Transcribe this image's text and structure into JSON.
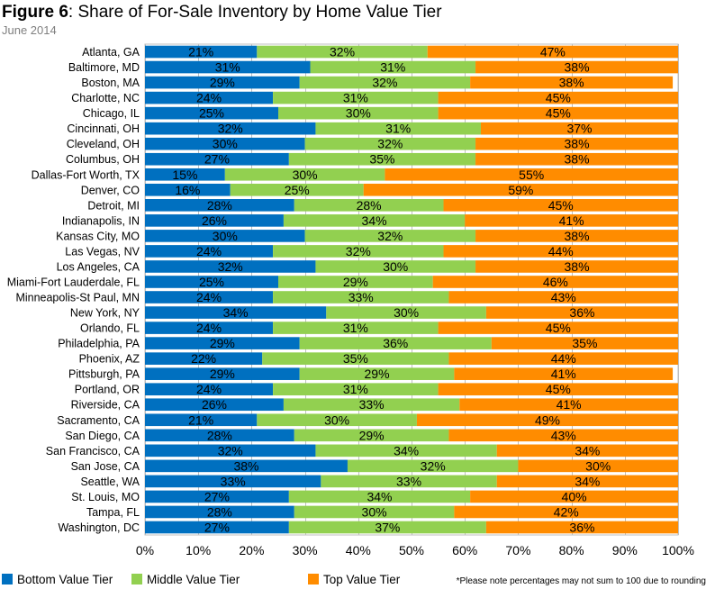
{
  "title": {
    "prefix": "Figure 6",
    "text": ": Share of For-Sale Inventory by Home Value Tier",
    "subtitle": "June 2014"
  },
  "note": "*Please note percentages may not sum to 100 due to rounding",
  "colors": {
    "bottom": "#0070C0",
    "middle": "#92D050",
    "top": "#FF8C00"
  },
  "chart_data": {
    "type": "bar",
    "orientation": "horizontal",
    "stacked": "percent",
    "title": "Share of For-Sale Inventory by Home Value Tier",
    "subtitle": "June 2014",
    "xlim": [
      0,
      100
    ],
    "x_ticks": [
      "0%",
      "10%",
      "20%",
      "30%",
      "40%",
      "50%",
      "60%",
      "70%",
      "80%",
      "90%",
      "100%"
    ],
    "grid": true,
    "legend_position": "bottom",
    "categories": [
      "Atlanta, GA",
      "Baltimore, MD",
      "Boston, MA",
      "Charlotte, NC",
      "Chicago, IL",
      "Cincinnati, OH",
      "Cleveland, OH",
      "Columbus, OH",
      "Dallas-Fort Worth, TX",
      "Denver, CO",
      "Detroit, MI",
      "Indianapolis, IN",
      "Kansas City, MO",
      "Las Vegas, NV",
      "Los Angeles, CA",
      "Miami-Fort Lauderdale, FL",
      "Minneapolis-St Paul, MN",
      "New York, NY",
      "Orlando, FL",
      "Philadelphia, PA",
      "Phoenix, AZ",
      "Pittsburgh, PA",
      "Portland, OR",
      "Riverside, CA",
      "Sacramento, CA",
      "San Diego, CA",
      "San Francisco, CA",
      "San Jose, CA",
      "Seattle, WA",
      "St. Louis, MO",
      "Tampa, FL",
      "Washington, DC"
    ],
    "series": [
      {
        "name": "Bottom Value Tier",
        "values": [
          21,
          31,
          29,
          24,
          25,
          32,
          30,
          27,
          15,
          16,
          28,
          26,
          30,
          24,
          32,
          25,
          24,
          34,
          24,
          29,
          22,
          29,
          24,
          26,
          21,
          28,
          32,
          38,
          33,
          27,
          28,
          27
        ]
      },
      {
        "name": "Middle Value Tier",
        "values": [
          32,
          31,
          32,
          31,
          30,
          31,
          32,
          35,
          30,
          25,
          28,
          34,
          32,
          32,
          30,
          29,
          33,
          30,
          31,
          36,
          35,
          29,
          31,
          33,
          30,
          29,
          34,
          32,
          33,
          34,
          30,
          37
        ]
      },
      {
        "name": "Top Value Tier",
        "values": [
          47,
          38,
          38,
          45,
          45,
          37,
          38,
          38,
          55,
          59,
          45,
          41,
          38,
          44,
          38,
          46,
          43,
          36,
          45,
          35,
          44,
          41,
          45,
          41,
          49,
          43,
          34,
          30,
          34,
          40,
          42,
          36
        ]
      }
    ]
  }
}
